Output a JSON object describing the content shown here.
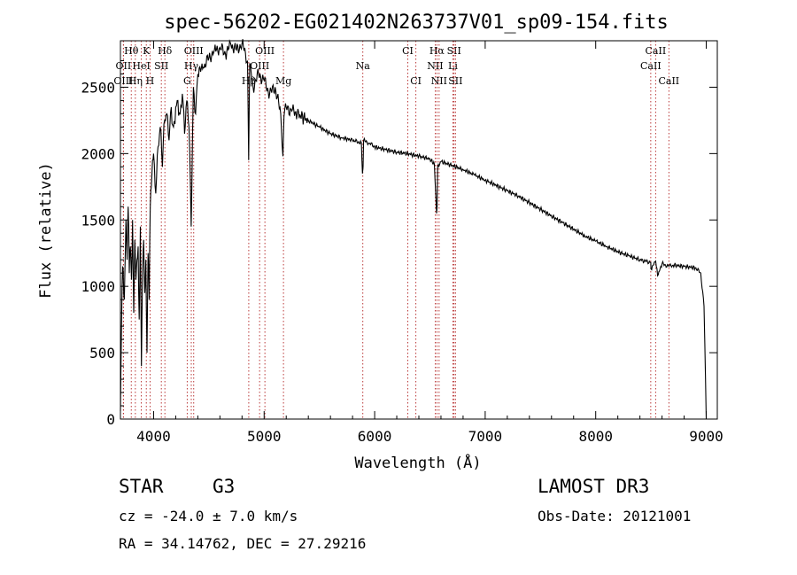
{
  "chart_data": {
    "type": "line",
    "title": "spec-56202-EG021402N263737V01_sp09-154.fits",
    "xlabel": "Wavelength (Å)",
    "ylabel": "Flux (relative)",
    "xlim": [
      3700,
      9100
    ],
    "ylim": [
      0,
      2850
    ],
    "xticks": [
      4000,
      5000,
      6000,
      7000,
      8000,
      9000
    ],
    "yticks": [
      0,
      500,
      1000,
      1500,
      2000,
      2500
    ],
    "tick_labels": {
      "x": [
        "4000",
        "5000",
        "6000",
        "7000",
        "8000",
        "9000"
      ],
      "y": [
        "0",
        "500",
        "1000",
        "1500",
        "2000",
        "2500"
      ]
    },
    "grid": false,
    "line_color": "#000000",
    "marker_color": "#b22222",
    "series": [
      {
        "name": "flux",
        "x": [
          3700,
          3710,
          3720,
          3735,
          3750,
          3760,
          3770,
          3780,
          3790,
          3800,
          3810,
          3820,
          3830,
          3840,
          3850,
          3860,
          3870,
          3880,
          3890,
          3900,
          3910,
          3920,
          3930,
          3940,
          3950,
          3960,
          3970,
          3980,
          3990,
          4000,
          4020,
          4040,
          4060,
          4080,
          4100,
          4120,
          4140,
          4160,
          4180,
          4200,
          4220,
          4240,
          4260,
          4280,
          4300,
          4320,
          4340,
          4360,
          4380,
          4400,
          4450,
          4500,
          4550,
          4600,
          4650,
          4700,
          4750,
          4800,
          4850,
          4860,
          4870,
          4900,
          4950,
          5000,
          5050,
          5100,
          5150,
          5170,
          5180,
          5200,
          5250,
          5300,
          5400,
          5500,
          5600,
          5700,
          5800,
          5880,
          5890,
          5895,
          5900,
          5950,
          6000,
          6100,
          6200,
          6300,
          6400,
          6500,
          6540,
          6560,
          6565,
          6570,
          6600,
          6700,
          6800,
          6900,
          7000,
          7100,
          7200,
          7300,
          7400,
          7500,
          7600,
          7700,
          7800,
          7900,
          8000,
          8100,
          8200,
          8300,
          8400,
          8498,
          8500,
          8542,
          8560,
          8600,
          8662,
          8700,
          8800,
          8900,
          8950,
          8980,
          9000
        ],
        "y": [
          60,
          700,
          1150,
          900,
          1500,
          1200,
          1600,
          1100,
          1300,
          1050,
          1500,
          800,
          1350,
          1050,
          1200,
          1300,
          750,
          1450,
          400,
          1100,
          1350,
          950,
          1200,
          500,
          1250,
          900,
          1600,
          1750,
          1950,
          2000,
          1700,
          2050,
          2200,
          1900,
          2250,
          2300,
          2100,
          2350,
          2200,
          2350,
          2400,
          2300,
          2450,
          2150,
          2400,
          2200,
          1450,
          2500,
          2300,
          2600,
          2650,
          2720,
          2780,
          2800,
          2750,
          2820,
          2780,
          2830,
          2700,
          1950,
          2680,
          2500,
          2600,
          2550,
          2450,
          2500,
          2300,
          1980,
          2280,
          2350,
          2320,
          2300,
          2250,
          2200,
          2150,
          2120,
          2100,
          2080,
          1850,
          1900,
          2100,
          2080,
          2050,
          2030,
          2010,
          2000,
          1980,
          1960,
          1920,
          1550,
          1600,
          1900,
          1940,
          1910,
          1880,
          1840,
          1800,
          1760,
          1720,
          1680,
          1630,
          1580,
          1530,
          1480,
          1430,
          1380,
          1340,
          1300,
          1260,
          1230,
          1200,
          1180,
          1130,
          1190,
          1080,
          1170,
          1150,
          1160,
          1150,
          1140,
          1100,
          850,
          0
        ]
      }
    ],
    "line_markers": [
      {
        "label": "Hθ",
        "x": 3798,
        "row": 0
      },
      {
        "label": "K",
        "x": 3934,
        "row": 0
      },
      {
        "label": "Hδ",
        "x": 4102,
        "row": 0
      },
      {
        "label": "OIII",
        "x": 4363,
        "row": 0
      },
      {
        "label": "OIII",
        "x": 5007,
        "row": 0
      },
      {
        "label": "CI",
        "x": 6300,
        "row": 0
      },
      {
        "label": "Hα",
        "x": 6563,
        "row": 0
      },
      {
        "label": "SII",
        "x": 6718,
        "row": 0
      },
      {
        "label": "CaII",
        "x": 8542,
        "row": 0
      },
      {
        "label": "OII",
        "x": 3727,
        "row": 1
      },
      {
        "label": "HeI",
        "x": 3889,
        "row": 1
      },
      {
        "label": "SII",
        "x": 4070,
        "row": 1
      },
      {
        "label": "Hγ",
        "x": 4341,
        "row": 1
      },
      {
        "label": "OIII",
        "x": 4959,
        "row": 1
      },
      {
        "label": "Na",
        "x": 5893,
        "row": 1
      },
      {
        "label": "NII",
        "x": 6548,
        "row": 1
      },
      {
        "label": "Li",
        "x": 6708,
        "row": 1
      },
      {
        "label": "CaII",
        "x": 8498,
        "row": 1
      },
      {
        "label": "OIII",
        "x": 3727,
        "row": 2
      },
      {
        "label": "Hη",
        "x": 3835,
        "row": 2
      },
      {
        "label": "H",
        "x": 3968,
        "row": 2
      },
      {
        "label": "G",
        "x": 4304,
        "row": 2
      },
      {
        "label": "Hβ",
        "x": 4861,
        "row": 2
      },
      {
        "label": "Mg",
        "x": 5175,
        "row": 2
      },
      {
        "label": "CI",
        "x": 6373,
        "row": 2
      },
      {
        "label": "NII",
        "x": 6583,
        "row": 2
      },
      {
        "label": "SII",
        "x": 6731,
        "row": 2
      },
      {
        "label": "CaII",
        "x": 8662,
        "row": 2
      }
    ]
  },
  "info": {
    "object_class": "STAR",
    "subclass": "G3",
    "survey": "LAMOST DR3",
    "redshift": "cz = -24.0 ± 7.0 km/s",
    "obs_date": "Obs-Date: 20121001",
    "coords": "RA =  34.14762, DEC =  27.29216"
  }
}
